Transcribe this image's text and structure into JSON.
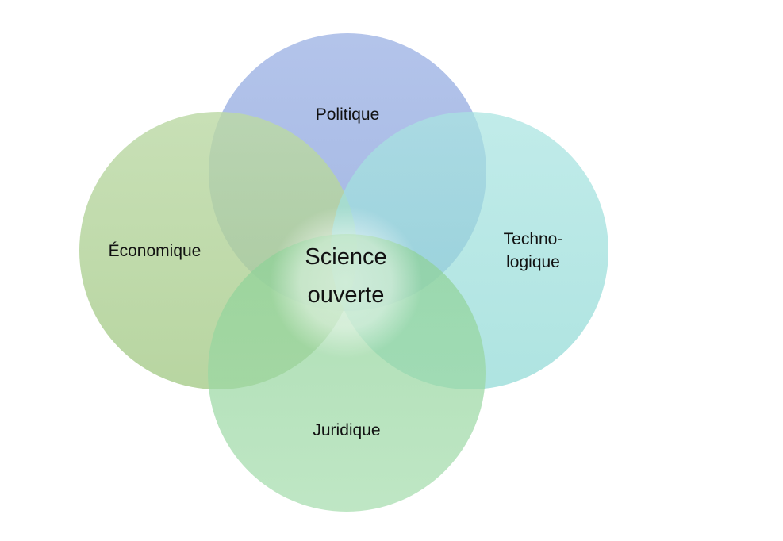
{
  "diagram": {
    "center": {
      "line1": "Science",
      "line2": "ouverte"
    },
    "circles": {
      "top": {
        "label": "Politique",
        "color": "#8FA8DC"
      },
      "left": {
        "label": "Économique",
        "color": "#A9D08E"
      },
      "right": {
        "line1": "Techno-",
        "line2": "logique",
        "color": "#8ED8D4"
      },
      "bottom": {
        "label": "Juridique",
        "color": "#80CC88"
      }
    }
  }
}
